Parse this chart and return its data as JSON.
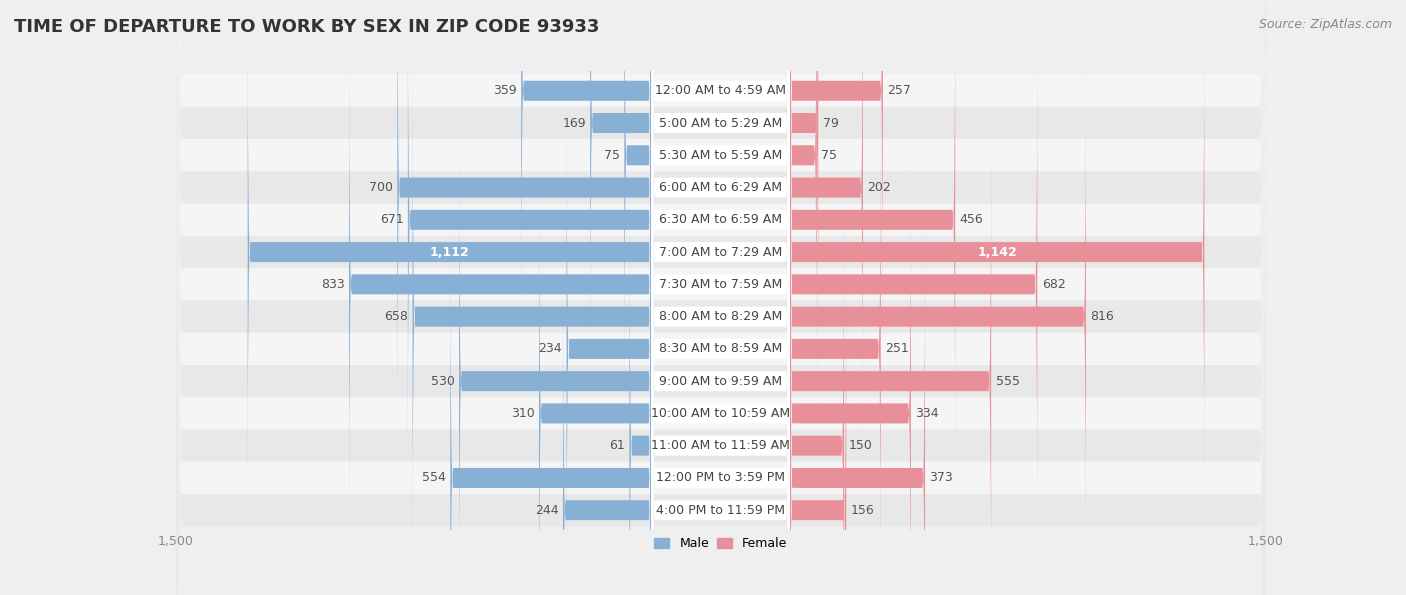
{
  "title": "TIME OF DEPARTURE TO WORK BY SEX IN ZIP CODE 93933",
  "source": "Source: ZipAtlas.com",
  "categories": [
    "12:00 AM to 4:59 AM",
    "5:00 AM to 5:29 AM",
    "5:30 AM to 5:59 AM",
    "6:00 AM to 6:29 AM",
    "6:30 AM to 6:59 AM",
    "7:00 AM to 7:29 AM",
    "7:30 AM to 7:59 AM",
    "8:00 AM to 8:29 AM",
    "8:30 AM to 8:59 AM",
    "9:00 AM to 9:59 AM",
    "10:00 AM to 10:59 AM",
    "11:00 AM to 11:59 AM",
    "12:00 PM to 3:59 PM",
    "4:00 PM to 11:59 PM"
  ],
  "male_values": [
    359,
    169,
    75,
    700,
    671,
    1112,
    833,
    658,
    234,
    530,
    310,
    61,
    554,
    244
  ],
  "female_values": [
    257,
    79,
    75,
    202,
    456,
    1142,
    682,
    816,
    251,
    555,
    334,
    150,
    373,
    156
  ],
  "male_color": "#88afd4",
  "female_color": "#e8909a",
  "male_label": "Male",
  "female_label": "Female",
  "xlim": 1500,
  "background_color": "#efefef",
  "row_bg_colors": [
    "#f5f5f5",
    "#e8e8e8"
  ],
  "title_fontsize": 13,
  "source_fontsize": 9,
  "axis_label_fontsize": 9,
  "bar_label_fontsize": 9,
  "cat_label_fontsize": 9,
  "value_label_color": "#555555",
  "cat_label_color": "#444444"
}
